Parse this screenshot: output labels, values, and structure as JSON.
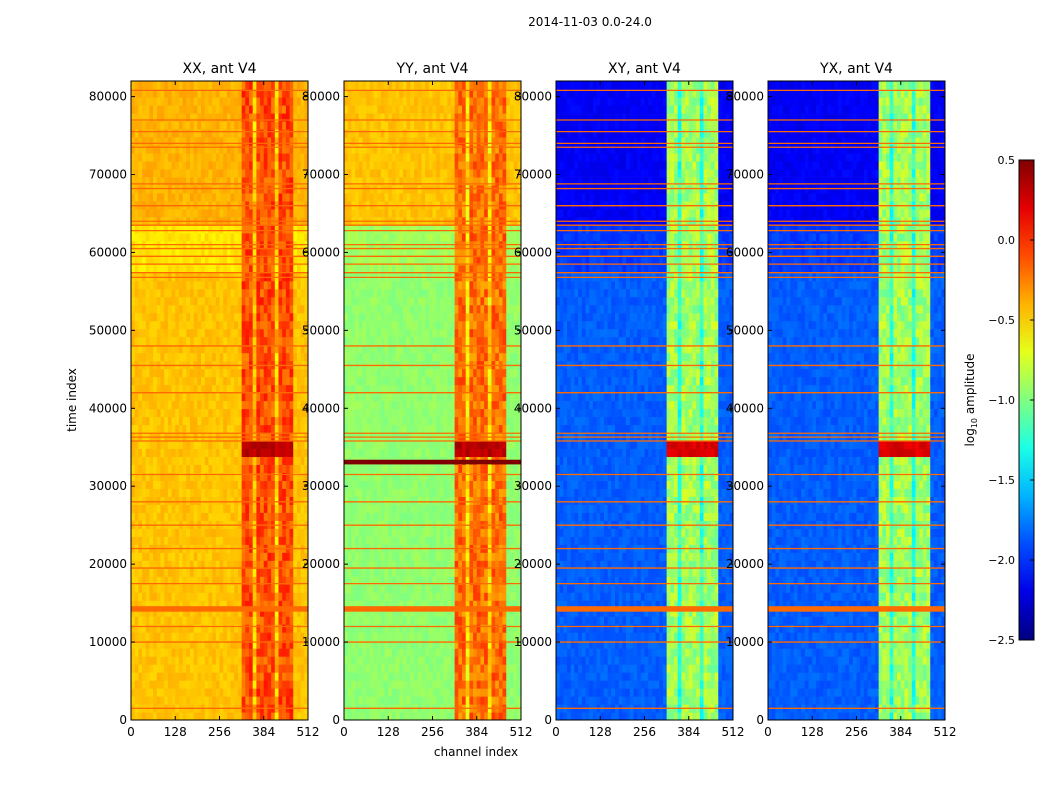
{
  "figure": {
    "suptitle": "2014-11-03 0.0-24.0",
    "xlabel": "channel index",
    "ylabel": "time index"
  },
  "colors": {
    "band_line": "#ff6a00",
    "saturated_band": "#7f0000",
    "axes_frame": "#000000"
  },
  "chart_data": {
    "type": "heatmap",
    "xlim": [
      0,
      512
    ],
    "ylim": [
      0,
      82000
    ],
    "x_ticks": [
      0,
      128,
      256,
      384,
      512
    ],
    "y_ticks": [
      0,
      10000,
      20000,
      30000,
      40000,
      50000,
      60000,
      70000,
      80000
    ],
    "colorbar": {
      "label_main": "log",
      "label_sub": "10",
      "label_suffix": " amplitude",
      "range": [
        -2.5,
        0.5
      ],
      "ticks": [
        -2.5,
        -2.0,
        -1.5,
        -1.0,
        -0.5,
        0.0,
        0.5
      ],
      "tick_labels": [
        "−2.5",
        "−2.0",
        "−1.5",
        "−1.0",
        "−0.5",
        "0.0",
        "0.5"
      ]
    },
    "flagged_time_rows": [
      1500,
      10000,
      12000,
      14100,
      14500,
      17500,
      19500,
      22000,
      25000,
      28000,
      31500,
      35800,
      36300,
      36800,
      42000,
      45500,
      48000,
      56800,
      57400,
      58500,
      59500,
      60500,
      61000,
      62800,
      63500,
      64000,
      66000,
      68200,
      68800,
      73500,
      74000,
      75500,
      77000,
      80800
    ],
    "panels": [
      {
        "title": "XX, ant V4",
        "base_levels": [
          [
            0,
            -0.45
          ],
          [
            57000,
            -0.55
          ],
          [
            63000,
            -0.4
          ],
          [
            82000,
            -0.2
          ]
        ],
        "rfi_channel_range": [
          320,
          470
        ],
        "rfi_level": -0.1,
        "saturated_time_range": [
          33000,
          35800
        ],
        "saturated_level": 0.4
      },
      {
        "title": "YY, ant V4",
        "base_levels": [
          [
            0,
            -0.95
          ],
          [
            57000,
            -0.9
          ],
          [
            63000,
            -0.45
          ],
          [
            82000,
            -0.25
          ]
        ],
        "rfi_channel_range": [
          320,
          470
        ],
        "rfi_level": -0.2,
        "saturated_time_range": [
          33000,
          35800
        ],
        "saturated_level": 0.4
      },
      {
        "title": "XY, ant V4",
        "base_levels": [
          [
            0,
            -1.85
          ],
          [
            57000,
            -1.95
          ],
          [
            63000,
            -2.15
          ],
          [
            82000,
            -2.0
          ]
        ],
        "rfi_channel_range": [
          320,
          470
        ],
        "rfi_level": -0.9,
        "saturated_time_range": [
          33000,
          35800
        ],
        "saturated_level": 0.3
      },
      {
        "title": "YX, ant V4",
        "base_levels": [
          [
            0,
            -1.85
          ],
          [
            57000,
            -1.95
          ],
          [
            63000,
            -2.15
          ],
          [
            82000,
            -2.0
          ]
        ],
        "rfi_channel_range": [
          320,
          470
        ],
        "rfi_level": -0.9,
        "saturated_time_range": [
          33000,
          35800
        ],
        "saturated_level": 0.3
      }
    ]
  }
}
